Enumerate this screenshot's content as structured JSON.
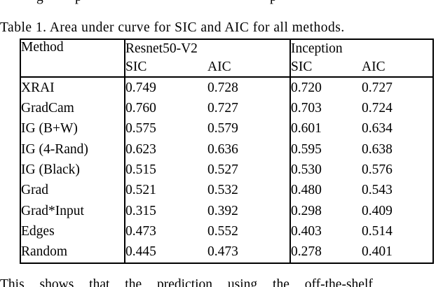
{
  "page": {
    "background": "#ffffff",
    "text_color": "#000000",
    "border_color": "#000000"
  },
  "top_cropped_line": {
    "fragments": [
      "g",
      "p",
      "p"
    ]
  },
  "caption": "Table 1. Area under curve for SIC and AIC for all methods.",
  "table": {
    "method_header": "Method",
    "groups": [
      {
        "label": "Resnet50-V2",
        "sub": [
          "SIC",
          "AIC"
        ]
      },
      {
        "label": "Inception",
        "sub": [
          "SIC",
          "AIC"
        ]
      }
    ],
    "rows": [
      {
        "method": "XRAI",
        "values": [
          "0.749",
          "0.728",
          "0.720",
          "0.727"
        ],
        "bold": [
          false,
          true,
          true,
          true
        ]
      },
      {
        "method": "GradCam",
        "values": [
          "0.760",
          "0.727",
          "0.703",
          "0.724"
        ],
        "bold": [
          true,
          false,
          false,
          false
        ]
      },
      {
        "method": "IG (B+W)",
        "values": [
          "0.575",
          "0.579",
          "0.601",
          "0.634"
        ],
        "bold": [
          false,
          false,
          false,
          false
        ]
      },
      {
        "method": "IG (4-Rand)",
        "values": [
          "0.623",
          "0.636",
          "0.595",
          "0.638"
        ],
        "bold": [
          false,
          false,
          false,
          false
        ]
      },
      {
        "method": "IG (Black)",
        "values": [
          "0.515",
          "0.527",
          "0.530",
          "0.576"
        ],
        "bold": [
          false,
          false,
          false,
          false
        ]
      },
      {
        "method": "Grad",
        "values": [
          "0.521",
          "0.532",
          "0.480",
          "0.543"
        ],
        "bold": [
          false,
          false,
          false,
          false
        ]
      },
      {
        "method": "Grad*Input",
        "values": [
          "0.315",
          "0.392",
          "0.298",
          "0.409"
        ],
        "bold": [
          false,
          false,
          false,
          false
        ]
      },
      {
        "method": "Edges",
        "values": [
          "0.473",
          "0.552",
          "0.403",
          "0.514"
        ],
        "bold": [
          false,
          false,
          false,
          false
        ]
      },
      {
        "method": "Random",
        "values": [
          "0.445",
          "0.473",
          "0.278",
          "0.401"
        ],
        "bold": [
          false,
          false,
          false,
          false
        ]
      }
    ]
  },
  "bottom_cropped_line": {
    "text": "This shows that the prediction using the off-the-shelf"
  }
}
